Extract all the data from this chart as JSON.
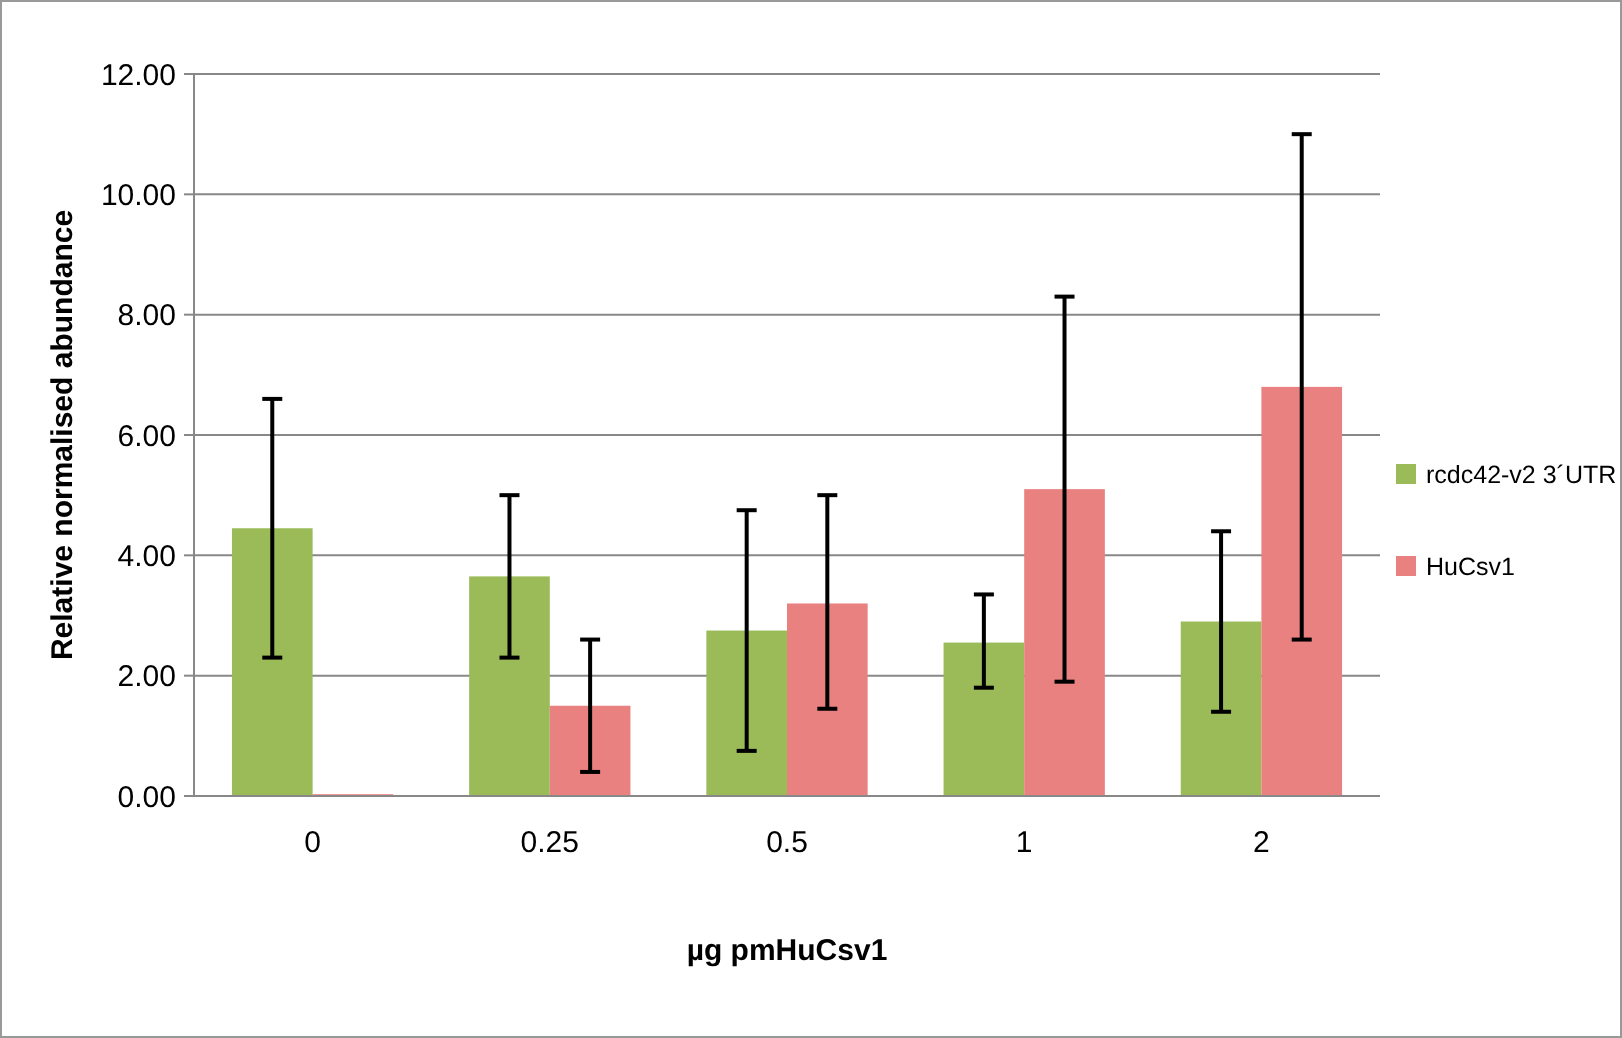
{
  "chart_data": {
    "type": "bar",
    "xlabel": "µg pmHuCsv1",
    "ylabel": "Relative normalised abundance",
    "categories": [
      "0",
      "0.25",
      "0.5",
      "1",
      "2"
    ],
    "series": [
      {
        "name": "rcdc42-v2 3´UTR",
        "color": "#9bbb59",
        "values": [
          4.45,
          3.65,
          2.75,
          2.55,
          2.9
        ],
        "errors": [
          [
            2.3,
            6.6
          ],
          [
            2.3,
            5.0
          ],
          [
            0.75,
            4.75
          ],
          [
            1.8,
            3.35
          ],
          [
            1.4,
            4.4
          ]
        ]
      },
      {
        "name": "HuCsv1",
        "color": "#e8817f",
        "values": [
          0.03,
          1.5,
          3.2,
          5.1,
          6.8
        ],
        "errors": [
          null,
          [
            0.4,
            2.6
          ],
          [
            1.45,
            5.0
          ],
          [
            1.9,
            8.3
          ],
          [
            2.6,
            11.0
          ]
        ]
      }
    ],
    "ylim": [
      0,
      12
    ],
    "yticks": [
      {
        "value": 0,
        "label": "0.00"
      },
      {
        "value": 2,
        "label": "2.00"
      },
      {
        "value": 4,
        "label": "4.00"
      },
      {
        "value": 6,
        "label": "6.00"
      },
      {
        "value": 8,
        "label": "8.00"
      },
      {
        "value": 10,
        "label": "10.00"
      },
      {
        "value": 12,
        "label": "12.00"
      }
    ],
    "grid": "y",
    "legend": "right"
  }
}
